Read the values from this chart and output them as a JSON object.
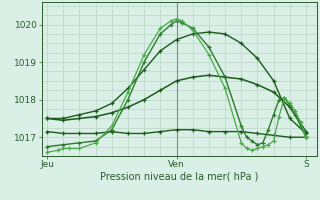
{
  "title": "Pression niveau de la mer( hPa )",
  "background_color": "#daf0e6",
  "plot_bg_color": "#daf0e6",
  "grid_color": "#c0d8cc",
  "ylim": [
    1016.5,
    1020.6
  ],
  "xlim": [
    -1,
    50
  ],
  "yticks": [
    1017,
    1018,
    1019,
    1020
  ],
  "xtick_positions": [
    0,
    24,
    48
  ],
  "xtick_labels": [
    "Jeu",
    "Ven",
    "S"
  ],
  "ven_vline": 24,
  "series": [
    {
      "x": [
        0,
        3,
        6,
        9,
        12,
        15,
        18,
        21,
        24,
        27,
        30,
        33,
        36,
        39,
        42,
        45,
        48
      ],
      "y": [
        1017.15,
        1017.1,
        1017.1,
        1017.1,
        1017.15,
        1017.1,
        1017.1,
        1017.15,
        1017.2,
        1017.2,
        1017.15,
        1017.15,
        1017.15,
        1017.1,
        1017.05,
        1017.0,
        1017.0
      ],
      "color": "#1a5c1a",
      "lw": 1.0,
      "marker": "+"
    },
    {
      "x": [
        0,
        3,
        6,
        9,
        12,
        15,
        18,
        21,
        24,
        27,
        30,
        33,
        36,
        39,
        42,
        45,
        48
      ],
      "y": [
        1017.5,
        1017.45,
        1017.5,
        1017.55,
        1017.65,
        1017.8,
        1018.0,
        1018.25,
        1018.5,
        1018.6,
        1018.65,
        1018.6,
        1018.55,
        1018.4,
        1018.2,
        1017.8,
        1017.15
      ],
      "color": "#1a5c1a",
      "lw": 1.1,
      "marker": "+"
    },
    {
      "x": [
        0,
        3,
        6,
        9,
        12,
        15,
        18,
        21,
        24,
        27,
        30,
        33,
        36,
        39,
        42,
        45,
        48
      ],
      "y": [
        1017.5,
        1017.5,
        1017.6,
        1017.7,
        1017.9,
        1018.3,
        1018.8,
        1019.3,
        1019.6,
        1019.75,
        1019.8,
        1019.75,
        1019.5,
        1019.1,
        1018.5,
        1017.5,
        1017.1
      ],
      "color": "#1a5c1a",
      "lw": 1.0,
      "marker": "+"
    },
    {
      "x": [
        0,
        3,
        6,
        9,
        12,
        15,
        18,
        21,
        23,
        24,
        25,
        27,
        30,
        33,
        36,
        37,
        38,
        39,
        40,
        41,
        42,
        43,
        44,
        45,
        46,
        47,
        48
      ],
      "y": [
        1016.75,
        1016.8,
        1016.85,
        1016.9,
        1017.2,
        1018.0,
        1019.0,
        1019.75,
        1020.0,
        1020.1,
        1020.05,
        1019.9,
        1019.4,
        1018.6,
        1017.3,
        1017.0,
        1016.9,
        1016.8,
        1016.85,
        1017.2,
        1017.6,
        1018.0,
        1018.05,
        1017.85,
        1017.6,
        1017.3,
        1017.0
      ],
      "color": "#2d7a2d",
      "lw": 1.0,
      "marker": "+"
    },
    {
      "x": [
        0,
        2,
        3,
        4,
        6,
        9,
        12,
        15,
        18,
        21,
        23,
        24,
        25,
        27,
        30,
        33,
        36,
        37,
        38,
        39,
        40,
        41,
        42,
        43,
        44,
        45,
        46,
        47,
        48
      ],
      "y": [
        1016.6,
        1016.65,
        1016.7,
        1016.7,
        1016.7,
        1016.85,
        1017.3,
        1018.2,
        1019.2,
        1019.9,
        1020.1,
        1020.15,
        1020.1,
        1019.85,
        1019.2,
        1018.3,
        1016.85,
        1016.7,
        1016.65,
        1016.7,
        1016.75,
        1016.8,
        1016.9,
        1017.55,
        1018.05,
        1017.9,
        1017.7,
        1017.4,
        1017.0
      ],
      "color": "#4aaa4a",
      "lw": 0.9,
      "marker": "+"
    }
  ]
}
